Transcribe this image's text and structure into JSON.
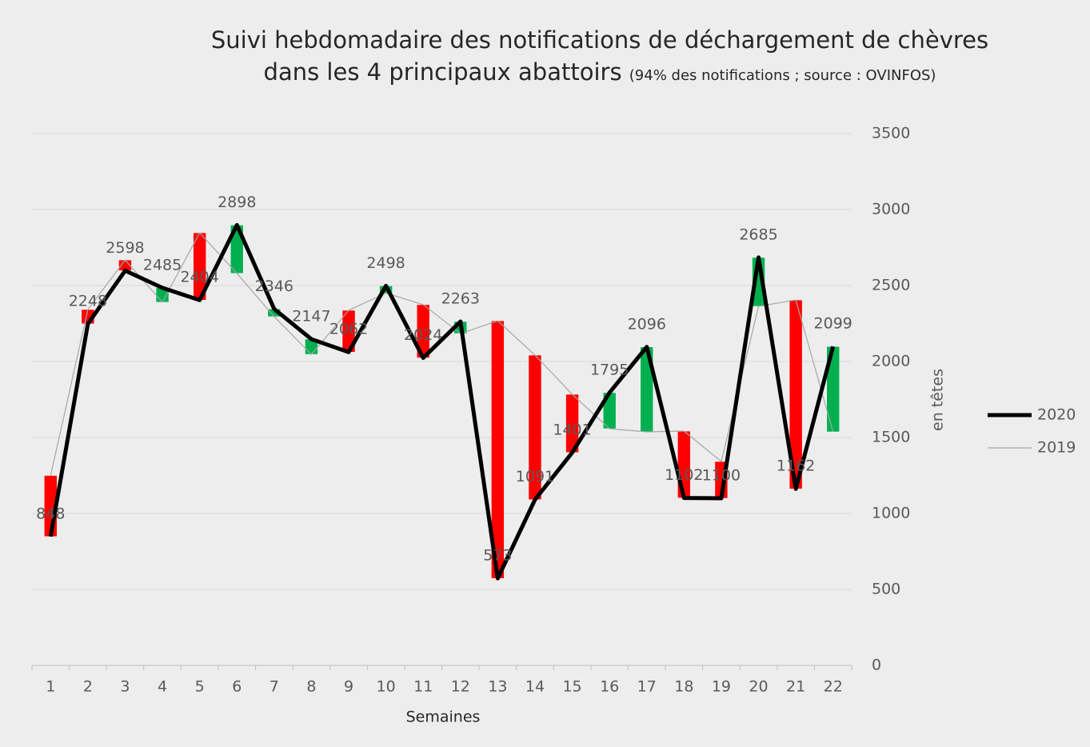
{
  "chart_data": {
    "type": "line",
    "title": "Suivi hebdomadaire des notifications de déchargement de chèvres dans les 4 principaux abattoirs",
    "subtitle": "(94% des notifications ; source : OVINFOS)",
    "x_label": "Semaines",
    "y_label": "en têtes",
    "categories": [
      "1",
      "2",
      "3",
      "4",
      "5",
      "6",
      "7",
      "8",
      "9",
      "10",
      "11",
      "12",
      "13",
      "14",
      "15",
      "16",
      "17",
      "18",
      "19",
      "20",
      "21",
      "22"
    ],
    "series": [
      {
        "name": "2020",
        "color": "#000000",
        "values": [
          848,
          2248,
          2598,
          2485,
          2404,
          2898,
          2346,
          2147,
          2062,
          2498,
          2024,
          2263,
          573,
          1091,
          1401,
          1795,
          2096,
          1102,
          1100,
          2685,
          1162,
          2099
        ]
      },
      {
        "name": "2019",
        "color": "#a6a6a6",
        "values": [
          1250,
          2342,
          2668,
          2390,
          2847,
          2580,
          2295,
          2047,
          2337,
          2450,
          2374,
          2184,
          2268,
          2042,
          1784,
          1558,
          1537,
          1542,
          1342,
          2363,
          2405,
          1537
        ]
      }
    ],
    "up_color": "#00b050",
    "down_color": "#ff0000",
    "ylim": [
      0,
      3500
    ],
    "yticks": [
      0,
      500,
      1000,
      1500,
      2000,
      2500,
      3000,
      3500
    ],
    "grid": true,
    "legend": "right"
  }
}
